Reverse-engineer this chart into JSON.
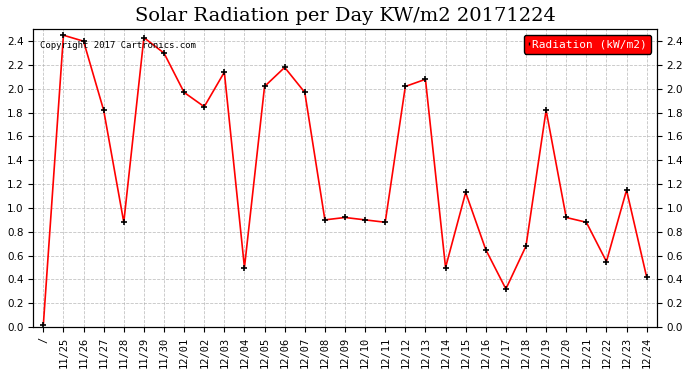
{
  "title": "Solar Radiation per Day KW/m2 20171224",
  "copyright_text": "Copyright 2017 Cartronics.com",
  "legend_label": "Radiation (kW/m2)",
  "dates": [
    "/",
    "11/25",
    "11/26",
    "11/27",
    "11/28",
    "11/29",
    "11/30",
    "12/01",
    "12/02",
    "12/03",
    "12/04",
    "12/05",
    "12/06",
    "12/07",
    "12/08",
    "12/09",
    "12/10",
    "12/11",
    "12/12",
    "12/13",
    "12/14",
    "12/15",
    "12/16",
    "12/17",
    "12/18",
    "12/19",
    "12/20",
    "12/21",
    "12/22",
    "12/23",
    "12/24"
  ],
  "values": [
    0.02,
    2.45,
    2.4,
    1.82,
    0.88,
    2.43,
    2.3,
    1.97,
    1.85,
    2.14,
    0.5,
    2.02,
    2.18,
    1.97,
    0.9,
    0.92,
    0.9,
    0.88,
    2.02,
    2.08,
    0.5,
    1.13,
    0.65,
    0.32,
    0.68,
    1.82,
    0.92,
    0.88,
    0.55,
    1.15,
    0.42
  ],
  "ylim": [
    0.0,
    2.5
  ],
  "yticks": [
    0.0,
    0.2,
    0.4,
    0.6,
    0.8,
    1.0,
    1.2,
    1.4,
    1.6,
    1.8,
    2.0,
    2.2,
    2.4
  ],
  "line_color": "red",
  "marker_color": "black",
  "background_color": "#ffffff",
  "grid_color": "#aaaaaa",
  "title_fontsize": 14,
  "tick_fontsize": 7.5,
  "legend_bg": "#ff0000",
  "legend_text_color": "#ffffff",
  "legend_fontsize": 8
}
